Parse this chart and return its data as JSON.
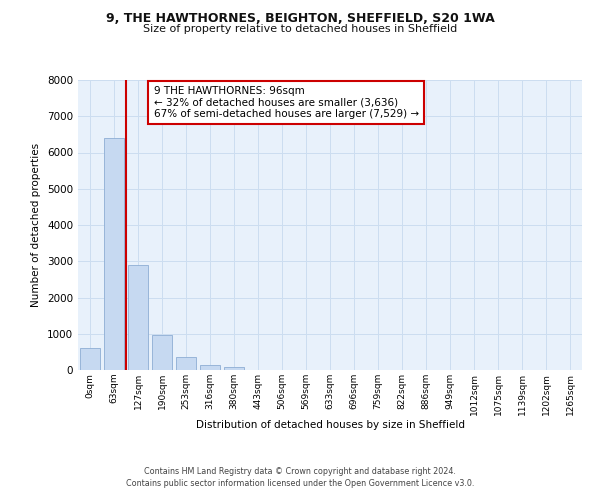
{
  "title_line1": "9, THE HAWTHORNES, BEIGHTON, SHEFFIELD, S20 1WA",
  "title_line2": "Size of property relative to detached houses in Sheffield",
  "xlabel": "Distribution of detached houses by size in Sheffield",
  "ylabel": "Number of detached properties",
  "bar_labels": [
    "0sqm",
    "63sqm",
    "127sqm",
    "190sqm",
    "253sqm",
    "316sqm",
    "380sqm",
    "443sqm",
    "506sqm",
    "569sqm",
    "633sqm",
    "696sqm",
    "759sqm",
    "822sqm",
    "886sqm",
    "949sqm",
    "1012sqm",
    "1075sqm",
    "1139sqm",
    "1202sqm",
    "1265sqm"
  ],
  "bar_values": [
    600,
    6400,
    2900,
    960,
    360,
    140,
    70,
    0,
    0,
    0,
    0,
    0,
    0,
    0,
    0,
    0,
    0,
    0,
    0,
    0,
    0
  ],
  "bar_color": "#c6d9f1",
  "bar_edge_color": "#8eaed4",
  "grid_color": "#ccddf0",
  "background_color": "#e8f1fb",
  "property_line_color": "#cc0000",
  "annotation_text": "9 THE HAWTHORNES: 96sqm\n← 32% of detached houses are smaller (3,636)\n67% of semi-detached houses are larger (7,529) →",
  "annotation_box_facecolor": "#ffffff",
  "annotation_box_edgecolor": "#cc0000",
  "ylim": [
    0,
    8000
  ],
  "yticks": [
    0,
    1000,
    2000,
    3000,
    4000,
    5000,
    6000,
    7000,
    8000
  ],
  "footer_line1": "Contains HM Land Registry data © Crown copyright and database right 2024.",
  "footer_line2": "Contains public sector information licensed under the Open Government Licence v3.0."
}
